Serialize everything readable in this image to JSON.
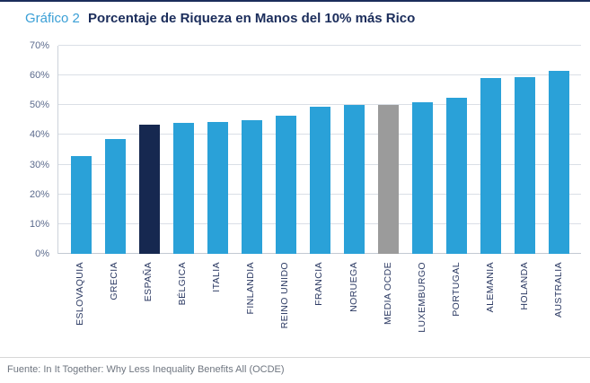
{
  "header": {
    "prefix": "Gráfico 2",
    "title": "Porcentaje de Riqueza en Manos del 10% más Rico"
  },
  "footer": {
    "source": "Fuente: In It Together: Why Less Inequality Benefits All (OCDE)"
  },
  "colors": {
    "default_bar": "#2aa1d8",
    "highlight_bar": "#162850",
    "ocde_bar": "#9b9b9b",
    "title_navy": "#1b2d5b",
    "title_blue": "#3a9fd6"
  },
  "chart_data": {
    "type": "bar",
    "title": "Porcentaje de Riqueza en Manos del 10% más Rico",
    "categories": [
      "ESLOVAQUIA",
      "GRECIA",
      "ESPAÑA",
      "BÉLGICA",
      "ITALIA",
      "FINLANDIA",
      "REINO UNIDO",
      "FRANCIA",
      "NORUEGA",
      "MEDIA OCDE",
      "LUXEMBURGO",
      "PORTUGAL",
      "ALEMANIA",
      "HOLANDA",
      "AUSTRALIA"
    ],
    "values": [
      33,
      38.5,
      43.5,
      44,
      44.5,
      45,
      46.5,
      49.5,
      50,
      50,
      51,
      52.5,
      59,
      59.5,
      61.5
    ],
    "bar_colors": [
      "#2aa1d8",
      "#2aa1d8",
      "#162850",
      "#2aa1d8",
      "#2aa1d8",
      "#2aa1d8",
      "#2aa1d8",
      "#2aa1d8",
      "#2aa1d8",
      "#9b9b9b",
      "#2aa1d8",
      "#2aa1d8",
      "#2aa1d8",
      "#2aa1d8",
      "#2aa1d8"
    ],
    "xlabel": "",
    "ylabel": "",
    "ylim": [
      0,
      70
    ],
    "yticks": [
      "0%",
      "10%",
      "20%",
      "30%",
      "40%",
      "50%",
      "60%",
      "70%"
    ],
    "grid": "horizontal",
    "legend": "none"
  }
}
